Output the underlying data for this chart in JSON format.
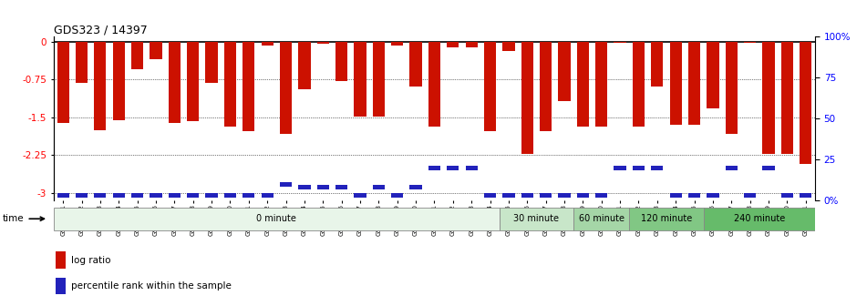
{
  "title": "GDS323 / 14397",
  "samples": [
    "GSM5811",
    "GSM5812",
    "GSM5813",
    "GSM5814",
    "GSM5815",
    "GSM5816",
    "GSM5817",
    "GSM5818",
    "GSM5819",
    "GSM5820",
    "GSM5821",
    "GSM5822",
    "GSM5823",
    "GSM5824",
    "GSM5825",
    "GSM5826",
    "GSM5827",
    "GSM5828",
    "GSM5829",
    "GSM5830",
    "GSM5831",
    "GSM5832",
    "GSM5833",
    "GSM5834",
    "GSM5835",
    "GSM5836",
    "GSM5837",
    "GSM5838",
    "GSM5839",
    "GSM5840",
    "GSM5841",
    "GSM5842",
    "GSM5843",
    "GSM5844",
    "GSM5845",
    "GSM5846",
    "GSM5847",
    "GSM5848",
    "GSM5849",
    "GSM5850",
    "GSM5851"
  ],
  "log_ratio": [
    -1.62,
    -0.82,
    -1.75,
    -1.55,
    -0.55,
    -0.35,
    -1.62,
    -1.58,
    -0.82,
    -1.68,
    -1.78,
    -0.08,
    -1.82,
    -0.95,
    -0.03,
    -0.78,
    -1.48,
    -1.48,
    -0.08,
    -0.88,
    -1.68,
    -0.12,
    -0.12,
    -1.78,
    -0.18,
    -2.22,
    -1.78,
    -1.18,
    -1.68,
    -1.68,
    -0.02,
    -1.68,
    -0.88,
    -1.65,
    -1.65,
    -1.32,
    -1.82,
    -0.02,
    -2.22,
    -2.22,
    -2.42
  ],
  "percentile_pct": [
    3,
    3,
    3,
    3,
    3,
    3,
    3,
    3,
    3,
    3,
    3,
    3,
    10,
    8,
    8,
    8,
    3,
    8,
    3,
    8,
    20,
    20,
    20,
    3,
    3,
    3,
    3,
    3,
    3,
    3,
    20,
    20,
    20,
    3,
    3,
    3,
    20,
    3,
    20,
    3,
    3
  ],
  "time_groups": [
    {
      "label": "0 minute",
      "start": 0,
      "end": 24,
      "color": "#e8f5e9"
    },
    {
      "label": "30 minute",
      "start": 24,
      "end": 28,
      "color": "#c8e6c9"
    },
    {
      "label": "60 minute",
      "start": 28,
      "end": 31,
      "color": "#a5d6a7"
    },
    {
      "label": "120 minute",
      "start": 31,
      "end": 35,
      "color": "#81c784"
    },
    {
      "label": "240 minute",
      "start": 35,
      "end": 41,
      "color": "#66bb6a"
    }
  ],
  "bar_color": "#cc1100",
  "percentile_color": "#2222bb",
  "ylim_left": [
    -3.15,
    0.1
  ],
  "yticks_left": [
    0,
    -0.75,
    -1.5,
    -2.25,
    -3
  ],
  "yticks_right": [
    0,
    25,
    50,
    75,
    100
  ],
  "yticklabels_right": [
    "0%",
    "25",
    "50",
    "75",
    "100%"
  ],
  "legend_logratio": "log ratio",
  "legend_percentile": "percentile rank within the sample",
  "bar_width": 0.65
}
